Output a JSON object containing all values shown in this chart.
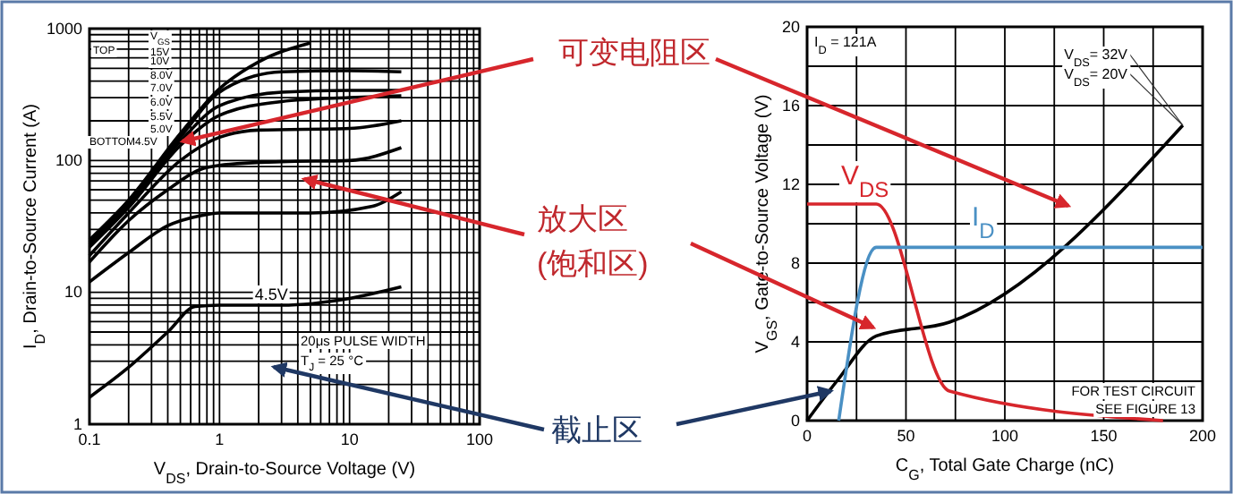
{
  "chart_data": [
    {
      "type": "line",
      "xlabel": "V$_{DS}$, Drain-to-Source Voltage (V)",
      "ylabel": "I$_{D}$, Drain-to-Source Current (A)",
      "log": "xy",
      "grid": true,
      "xlim": [
        0.1,
        100
      ],
      "xticks": [
        0.1,
        1,
        10,
        100
      ],
      "ylim": [
        1,
        1000
      ],
      "yticks": [
        1,
        10,
        100,
        1000
      ],
      "series": [
        {
          "color": "#000000",
          "x": [
            0.1,
            0.2,
            0.5,
            1,
            2,
            5
          ],
          "values": [
            25,
            50,
            160,
            350,
            560,
            780
          ]
        },
        {
          "color": "#000000",
          "x": [
            0.1,
            0.2,
            0.5,
            1,
            3,
            10,
            25
          ],
          "values": [
            24,
            48,
            150,
            330,
            470,
            480,
            470
          ]
        },
        {
          "color": "#000000",
          "x": [
            0.1,
            0.2,
            0.5,
            1,
            3,
            10,
            25
          ],
          "values": [
            23,
            46,
            140,
            260,
            330,
            340,
            340
          ]
        },
        {
          "color": "#000000",
          "x": [
            0.1,
            0.2,
            0.5,
            1,
            3,
            10,
            25
          ],
          "values": [
            22,
            44,
            130,
            220,
            280,
            300,
            310
          ]
        },
        {
          "color": "#000000",
          "x": [
            0.1,
            0.2,
            0.5,
            1,
            2,
            10,
            25
          ],
          "values": [
            19,
            40,
            100,
            150,
            170,
            175,
            200
          ]
        },
        {
          "color": "#000000",
          "x": [
            0.1,
            0.2,
            0.4,
            0.7,
            1,
            3,
            10,
            25
          ],
          "values": [
            17,
            35,
            60,
            85,
            92,
            98,
            100,
            125
          ]
        },
        {
          "color": "#000000",
          "x": [
            0.1,
            0.2,
            0.4,
            0.7,
            1,
            5,
            15,
            25
          ],
          "values": [
            12,
            20,
            32,
            38,
            40,
            40,
            45,
            58
          ]
        },
        {
          "color": "#000000",
          "x": [
            0.1,
            0.2,
            0.4,
            0.65,
            1,
            3,
            10,
            25
          ],
          "values": [
            1.6,
            2.7,
            5,
            7.8,
            8,
            8,
            9,
            11
          ]
        }
      ],
      "annotations": [
        "V$_{GS}$",
        "TOP",
        "15V",
        "10V",
        "8.0V",
        "7.0V",
        "6.0V",
        "5.5V",
        "5.0V",
        "BOTTOM4.5V",
        "20μs PULSE WIDTH",
        "T$_{J}$ = 25 °C",
        {
          "text": "4.5V",
          "x": 2.5,
          "y": 8
        }
      ]
    },
    {
      "type": "line",
      "xlabel": "C$_{G}$, Total Gate Charge (nC)",
      "ylabel": "V$_{GS}$, Gate-to-Source Voltage (V)",
      "grid": true,
      "xlim": [
        0,
        200
      ],
      "xticks": [
        0,
        {
          "value": 25,
          "label": null
        },
        50,
        {
          "value": 75,
          "label": null
        },
        100,
        {
          "value": 125,
          "label": null
        },
        150,
        {
          "value": 175,
          "label": null
        },
        200
      ],
      "ylim": [
        0,
        20
      ],
      "yticks": [
        0,
        {
          "value": 2,
          "label": null
        },
        4,
        {
          "value": 6,
          "label": null
        },
        8,
        {
          "value": 10,
          "label": null
        },
        12,
        {
          "value": 14,
          "label": null
        },
        16,
        {
          "value": 18,
          "label": null
        },
        20
      ],
      "series": [
        {
          "color": "#000000",
          "x": [
            0,
            15,
            35,
            72,
            190
          ],
          "values": [
            0,
            2,
            4.3,
            5,
            15
          ]
        },
        {
          "name": "V$_{DS}$",
          "color": "#d7262c",
          "x": [
            0,
            35,
            72,
            180
          ],
          "values": [
            11,
            11,
            1.5,
            0
          ]
        },
        {
          "name": "I$_{D}$",
          "color": "#4a90c4",
          "x": [
            16,
            35,
            200
          ],
          "values": [
            0,
            8.8,
            8.8
          ]
        }
      ],
      "annotations": [
        "I$_{D}$ = 121A",
        {
          "text": "V$_{DS}$= 32V",
          "x": 190,
          "y": 15
        },
        {
          "text": "V$_{DS}$= 20V",
          "x": 190,
          "y": 15
        },
        "FOR TEST CIRCUIT",
        "SEE FIGURE 13",
        "可变电阻区",
        "放大区",
        "(饱和区)",
        {
          "text": "截止区",
          "x": 12,
          "y": 1.5
        }
      ]
    }
  ]
}
